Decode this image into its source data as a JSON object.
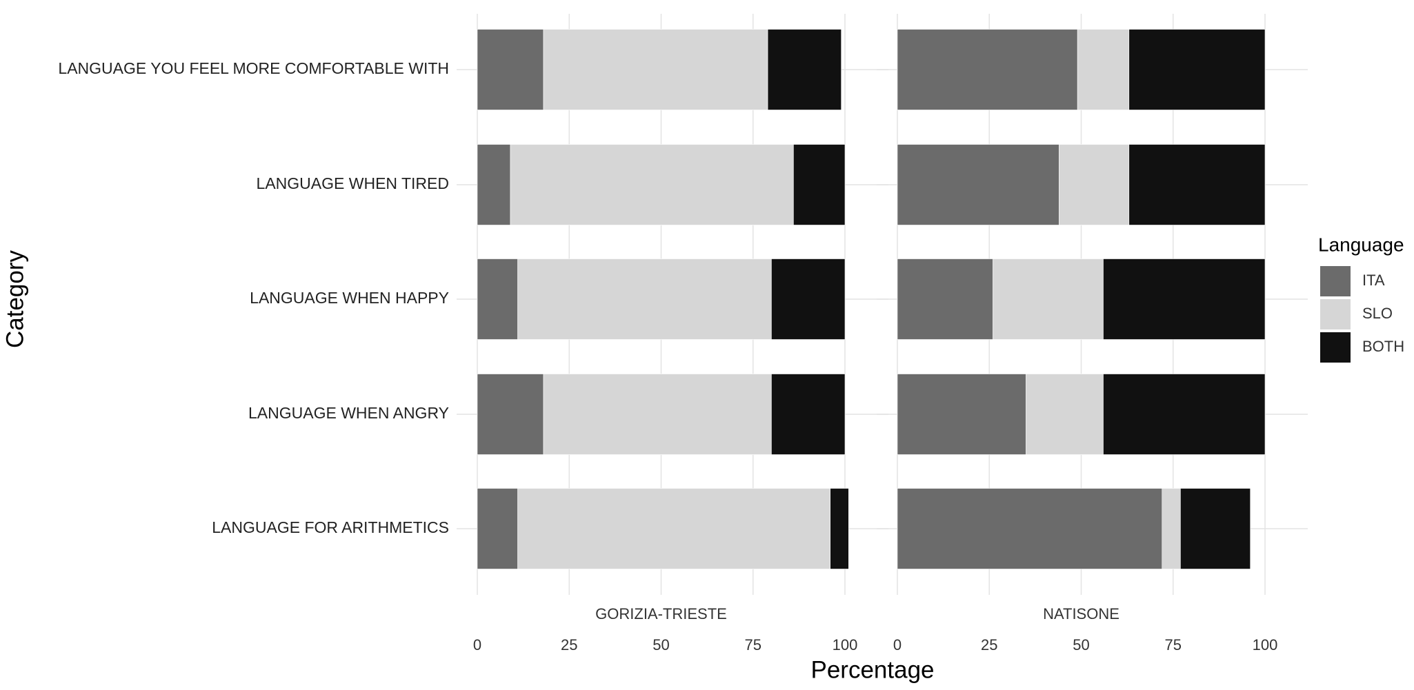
{
  "chart_data": {
    "type": "bar",
    "orientation": "horizontal",
    "stacked": true,
    "x_label": "Percentage",
    "y_label": "Category",
    "legend_title": "Language",
    "categories": [
      "LANGUAGE YOU FEEL MORE COMFORTABLE WITH",
      "LANGUAGE WHEN TIRED",
      "LANGUAGE WHEN HAPPY",
      "LANGUAGE WHEN ANGRY",
      "LANGUAGE FOR ARITHMETICS"
    ],
    "xlim": [
      0,
      100
    ],
    "xticks": [
      0,
      25,
      50,
      75,
      100
    ],
    "grid": true,
    "panels": [
      {
        "title": "GORIZIA-TRIESTE",
        "series": [
          {
            "name": "ITA",
            "color": "#6b6b6b",
            "values": [
              18,
              9,
              11,
              18,
              11
            ]
          },
          {
            "name": "SLO",
            "color": "#d6d6d6",
            "values": [
              61,
              77,
              69,
              62,
              85
            ]
          },
          {
            "name": "BOTH",
            "color": "#111111",
            "values": [
              20,
              14,
              20,
              20,
              5
            ]
          }
        ]
      },
      {
        "title": "NATISONE",
        "series": [
          {
            "name": "ITA",
            "color": "#6b6b6b",
            "values": [
              49,
              44,
              26,
              35,
              72
            ]
          },
          {
            "name": "SLO",
            "color": "#d6d6d6",
            "values": [
              14,
              19,
              30,
              21,
              5
            ]
          },
          {
            "name": "BOTH",
            "color": "#111111",
            "values": [
              37,
              37,
              44,
              44,
              19
            ]
          }
        ]
      }
    ]
  }
}
